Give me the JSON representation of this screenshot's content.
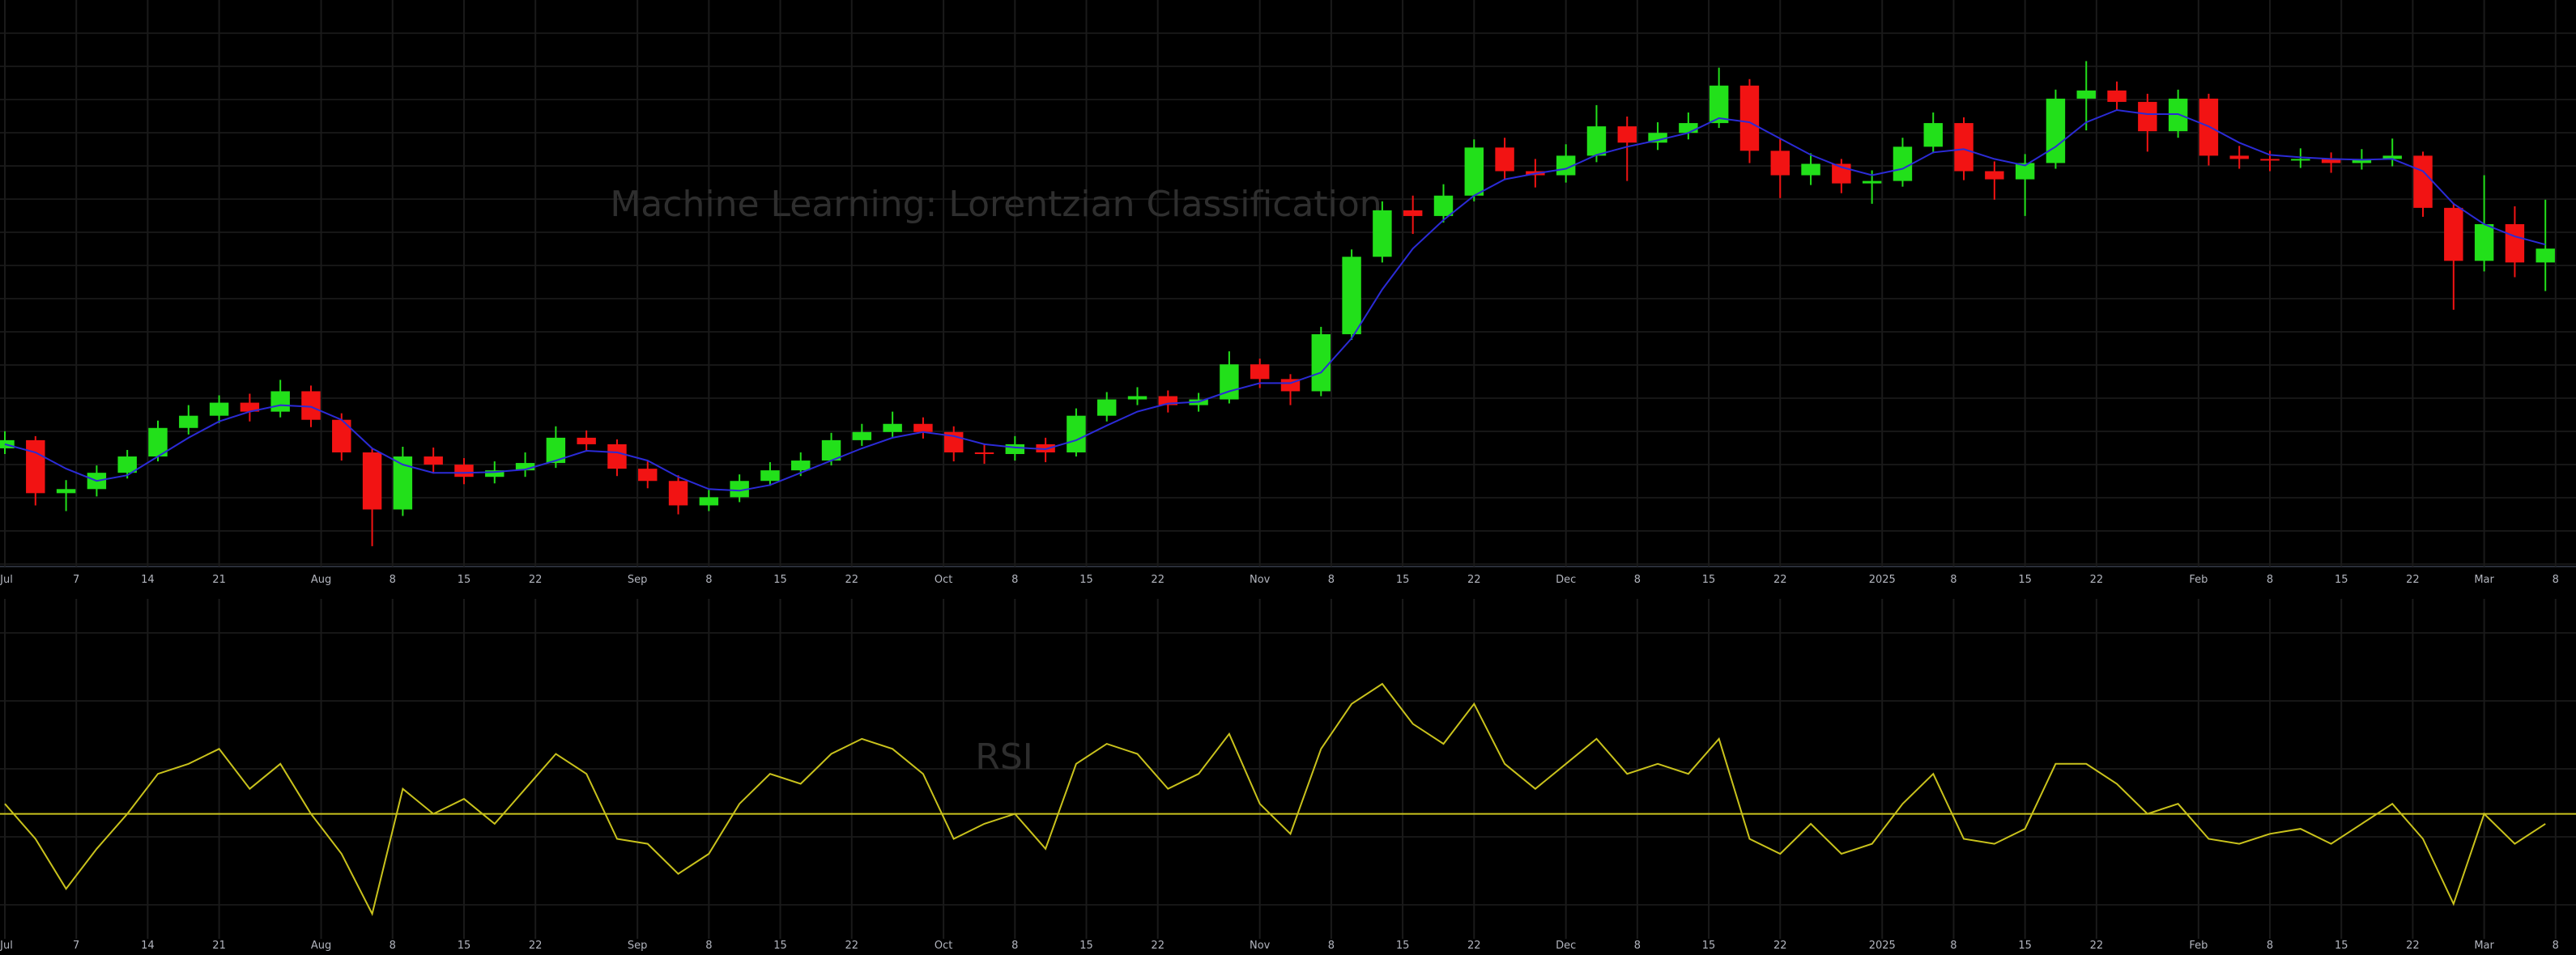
{
  "chart_data": [
    {
      "type": "candlestick",
      "title": "Machine Learning: Lorentzian Classification",
      "x": [
        0,
        3,
        6,
        9,
        12,
        15,
        18,
        21,
        24,
        27,
        30,
        33,
        36,
        39,
        42,
        45,
        48,
        51,
        54,
        57,
        60,
        63,
        66,
        69,
        72,
        75,
        78,
        81,
        84,
        87,
        90,
        93,
        96,
        99,
        102,
        105,
        108,
        111,
        114,
        117,
        120,
        123,
        126,
        129,
        132,
        135,
        138,
        141,
        144,
        147,
        150,
        153,
        156,
        159,
        162,
        165,
        168,
        171,
        174,
        177,
        180,
        183,
        186,
        189,
        192,
        195,
        198,
        201,
        204,
        207,
        210,
        213,
        216,
        219,
        222,
        225,
        228,
        231,
        234,
        237,
        240,
        243,
        246,
        249
      ],
      "open": [
        61.5,
        62.5,
        56.0,
        56.5,
        58.5,
        60.5,
        64.0,
        65.5,
        67.1,
        66.0,
        68.5,
        65.0,
        61.0,
        54.0,
        60.5,
        59.5,
        58.0,
        58.8,
        59.7,
        62.8,
        62.0,
        59.0,
        57.5,
        54.5,
        55.5,
        57.5,
        58.8,
        60.0,
        62.5,
        63.5,
        64.5,
        63.5,
        61.0,
        60.8,
        62.0,
        61.0,
        65.5,
        67.5,
        67.9,
        66.8,
        67.5,
        71.8,
        70.0,
        68.5,
        75.5,
        85.0,
        90.7,
        90.0,
        92.5,
        98.4,
        95.5,
        95.0,
        97.4,
        101.0,
        99.0,
        100.2,
        101.4,
        106.0,
        98.0,
        95.0,
        96.4,
        94.0,
        94.3,
        98.5,
        101.4,
        95.5,
        94.5,
        96.5,
        104.4,
        105.4,
        104.0,
        100.4,
        104.4,
        97.4,
        97.0,
        96.8,
        97.0,
        96.5,
        97.0,
        97.4,
        91.0,
        84.5,
        89.0,
        84.3
      ],
      "high": [
        63.6,
        63.0,
        57.6,
        59.4,
        61.3,
        64.9,
        66.8,
        68.0,
        68.2,
        69.9,
        69.2,
        65.8,
        61.5,
        61.7,
        61.6,
        60.3,
        59.9,
        61.0,
        64.2,
        63.7,
        62.6,
        59.9,
        58.2,
        56.4,
        58.3,
        59.8,
        61.0,
        63.4,
        64.5,
        66.0,
        65.3,
        64.2,
        62.0,
        63.0,
        62.8,
        66.4,
        68.4,
        69.0,
        68.6,
        68.3,
        73.4,
        72.5,
        70.6,
        76.4,
        85.9,
        91.8,
        92.5,
        93.9,
        99.4,
        99.6,
        97.0,
        98.8,
        103.6,
        102.2,
        101.5,
        102.7,
        108.2,
        106.8,
        99.5,
        97.7,
        97.0,
        95.6,
        99.6,
        102.7,
        102.1,
        96.7,
        97.6,
        105.5,
        109.0,
        106.5,
        105.0,
        105.5,
        105.0,
        98.6,
        98.0,
        98.3,
        97.8,
        98.2,
        99.5,
        97.9,
        91.6,
        95.0,
        91.2,
        92.0
      ],
      "low": [
        60.8,
        54.5,
        53.8,
        55.6,
        57.8,
        59.9,
        63.2,
        64.6,
        64.8,
        65.3,
        64.1,
        60.0,
        49.5,
        53.2,
        58.4,
        57.1,
        57.2,
        58.0,
        59.1,
        61.2,
        58.1,
        56.6,
        53.4,
        53.8,
        54.9,
        56.9,
        58.1,
        59.4,
        61.8,
        62.9,
        62.7,
        59.9,
        59.6,
        60.0,
        59.8,
        60.5,
        64.8,
        66.8,
        65.9,
        66.0,
        67.0,
        68.9,
        66.8,
        67.9,
        74.8,
        84.3,
        87.8,
        89.2,
        91.8,
        94.4,
        93.5,
        94.1,
        96.6,
        94.3,
        98.1,
        99.4,
        100.8,
        96.5,
        92.2,
        93.8,
        92.8,
        91.5,
        93.6,
        97.7,
        94.4,
        92.0,
        90.0,
        95.8,
        100.5,
        102.9,
        97.9,
        99.6,
        96.2,
        95.8,
        95.5,
        95.9,
        95.3,
        95.7,
        96.1,
        89.9,
        78.5,
        83.2,
        82.5,
        80.8
      ],
      "close": [
        62.5,
        56.0,
        56.5,
        58.5,
        60.5,
        64.0,
        65.5,
        67.1,
        66.0,
        68.5,
        65.0,
        61.0,
        54.0,
        60.5,
        59.5,
        58.0,
        58.8,
        59.7,
        62.8,
        62.0,
        59.0,
        57.5,
        54.5,
        55.5,
        57.5,
        58.8,
        60.0,
        62.5,
        63.5,
        64.5,
        63.5,
        61.0,
        60.8,
        62.0,
        61.0,
        65.5,
        67.5,
        67.9,
        66.8,
        67.5,
        71.8,
        70.0,
        68.5,
        75.5,
        85.0,
        90.7,
        90.0,
        92.5,
        98.4,
        95.5,
        95.0,
        97.4,
        101.0,
        99.0,
        100.2,
        101.4,
        106.0,
        98.0,
        95.0,
        96.4,
        94.0,
        94.3,
        98.5,
        101.4,
        95.5,
        94.5,
        96.5,
        104.4,
        105.4,
        104.0,
        100.4,
        104.4,
        97.4,
        97.0,
        96.8,
        97.0,
        96.5,
        97.0,
        97.4,
        91.0,
        84.5,
        89.0,
        84.3,
        86.0
      ],
      "up_color": "#22e01a",
      "down_color": "#f21313",
      "overlay": {
        "color": "#2b2bd6",
        "values": [
          62.0,
          61.0,
          59.0,
          57.5,
          58.2,
          60.5,
          62.8,
          64.8,
          66.0,
          66.8,
          66.6,
          65.0,
          61.5,
          59.5,
          58.5,
          58.5,
          58.6,
          58.9,
          60.0,
          61.2,
          61.0,
          60.0,
          58.0,
          56.5,
          56.3,
          57.0,
          58.5,
          60.0,
          61.5,
          62.8,
          63.5,
          63.0,
          62.0,
          61.6,
          61.4,
          62.5,
          64.3,
          66.0,
          67.0,
          67.2,
          68.5,
          69.5,
          69.5,
          70.8,
          75.0,
          81.0,
          86.0,
          89.5,
          92.5,
          94.5,
          95.2,
          95.8,
          97.5,
          98.5,
          99.3,
          100.2,
          102.0,
          101.5,
          99.5,
          97.5,
          96.0,
          95.0,
          95.8,
          97.8,
          98.2,
          97.0,
          96.2,
          98.5,
          101.5,
          103.0,
          102.5,
          102.5,
          101.0,
          99.0,
          97.5,
          97.2,
          97.0,
          96.9,
          97.0,
          95.5,
          91.5,
          89.0,
          87.5,
          86.5
        ]
      },
      "xlim": [
        0,
        252
      ],
      "ylim": [
        47,
        116.5
      ],
      "xticks": [
        {
          "value": 0,
          "label": "Jul"
        },
        7,
        14,
        21,
        {
          "value": 31,
          "label": "Aug"
        },
        {
          "value": 38,
          "label": "8"
        },
        {
          "value": 45,
          "label": "15"
        },
        {
          "value": 52,
          "label": "22"
        },
        {
          "value": 62,
          "label": "Sep"
        },
        {
          "value": 69,
          "label": "8"
        },
        {
          "value": 76,
          "label": "15"
        },
        {
          "value": 83,
          "label": "22"
        },
        {
          "value": 92,
          "label": "Oct"
        },
        {
          "value": 99,
          "label": "8"
        },
        {
          "value": 106,
          "label": "15"
        },
        {
          "value": 113,
          "label": "22"
        },
        {
          "value": 123,
          "label": "Nov"
        },
        {
          "value": 130,
          "label": "8"
        },
        {
          "value": 137,
          "label": "15"
        },
        {
          "value": 144,
          "label": "22"
        },
        {
          "value": 153,
          "label": "Dec"
        },
        {
          "value": 160,
          "label": "8"
        },
        {
          "value": 167,
          "label": "15"
        },
        {
          "value": 174,
          "label": "22"
        },
        {
          "value": 184,
          "label": "2025"
        },
        {
          "value": 191,
          "label": "8"
        },
        {
          "value": 198,
          "label": "15"
        },
        {
          "value": 205,
          "label": "22"
        },
        {
          "value": 215,
          "label": "Feb"
        },
        {
          "value": 222,
          "label": "8"
        },
        {
          "value": 229,
          "label": "15"
        },
        {
          "value": 236,
          "label": "22"
        },
        {
          "value": 243,
          "label": "Mar"
        },
        {
          "value": 250,
          "label": "8"
        }
      ],
      "grid": true
    },
    {
      "type": "line",
      "title": "RSI",
      "x": [
        0,
        3,
        6,
        9,
        12,
        15,
        18,
        21,
        24,
        27,
        30,
        33,
        36,
        39,
        42,
        45,
        48,
        51,
        54,
        57,
        60,
        63,
        66,
        69,
        72,
        75,
        78,
        81,
        84,
        87,
        90,
        93,
        96,
        99,
        102,
        105,
        108,
        111,
        114,
        117,
        120,
        123,
        126,
        129,
        132,
        135,
        138,
        141,
        144,
        147,
        150,
        153,
        156,
        159,
        162,
        165,
        168,
        171,
        174,
        177,
        180,
        183,
        186,
        189,
        192,
        195,
        198,
        201,
        204,
        207,
        210,
        213,
        216,
        219,
        222,
        225,
        228,
        231,
        234,
        237,
        240,
        243,
        246,
        249
      ],
      "values": [
        52,
        45,
        35,
        43,
        50,
        58,
        60,
        63,
        55,
        60,
        50,
        42,
        30,
        55,
        50,
        53,
        48,
        55,
        62,
        58,
        45,
        44,
        38,
        42,
        52,
        58,
        56,
        62,
        65,
        63,
        58,
        45,
        48,
        50,
        43,
        60,
        64,
        62,
        55,
        58,
        66,
        52,
        46,
        63,
        72,
        76,
        68,
        64,
        72,
        60,
        55,
        60,
        65,
        58,
        60,
        58,
        65,
        45,
        42,
        48,
        42,
        44,
        52,
        58,
        45,
        44,
        47,
        60,
        60,
        56,
        50,
        52,
        45,
        44,
        46,
        47,
        44,
        48,
        52,
        45,
        32,
        50,
        44,
        48
      ],
      "color": "#c9c21c",
      "midline": 50,
      "xlim": [
        0,
        252
      ],
      "ylim": [
        25,
        93
      ],
      "xticks": [
        {
          "value": 0,
          "label": "Jul"
        },
        7,
        14,
        21,
        {
          "value": 31,
          "label": "Aug"
        },
        {
          "value": 38,
          "label": "8"
        },
        {
          "value": 45,
          "label": "15"
        },
        {
          "value": 52,
          "label": "22"
        },
        {
          "value": 62,
          "label": "Sep"
        },
        {
          "value": 69,
          "label": "8"
        },
        {
          "value": 76,
          "label": "15"
        },
        {
          "value": 83,
          "label": "22"
        },
        {
          "value": 92,
          "label": "Oct"
        },
        {
          "value": 99,
          "label": "8"
        },
        {
          "value": 106,
          "label": "15"
        },
        {
          "value": 113,
          "label": "22"
        },
        {
          "value": 123,
          "label": "Nov"
        },
        {
          "value": 130,
          "label": "8"
        },
        {
          "value": 137,
          "label": "15"
        },
        {
          "value": 144,
          "label": "22"
        },
        {
          "value": 153,
          "label": "Dec"
        },
        {
          "value": 160,
          "label": "8"
        },
        {
          "value": 167,
          "label": "15"
        },
        {
          "value": 174,
          "label": "22"
        },
        {
          "value": 184,
          "label": "2025"
        },
        {
          "value": 191,
          "label": "8"
        },
        {
          "value": 198,
          "label": "15"
        },
        {
          "value": 205,
          "label": "22"
        },
        {
          "value": 215,
          "label": "Feb"
        },
        {
          "value": 222,
          "label": "8"
        },
        {
          "value": 229,
          "label": "15"
        },
        {
          "value": 236,
          "label": "22"
        },
        {
          "value": 243,
          "label": "Mar"
        },
        {
          "value": 250,
          "label": "8"
        }
      ],
      "grid": true
    }
  ]
}
